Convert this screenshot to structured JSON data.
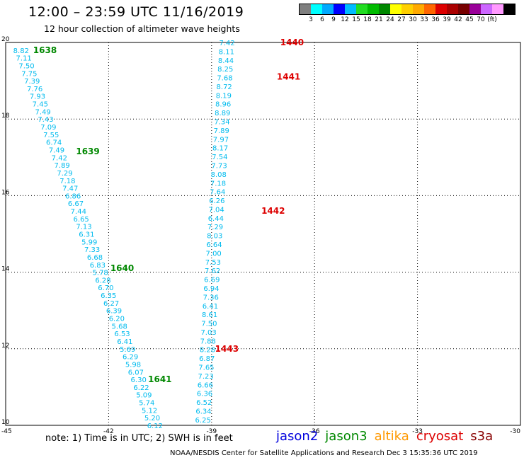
{
  "header": {
    "title": "12:00 – 23:59 UTC 11/16/2019",
    "subtitle": "12 hour collection of altimeter wave heights"
  },
  "legend": {
    "colors": [
      "#7f7f7f",
      "#00ffff",
      "#00aaff",
      "#0000ff",
      "#00bbff",
      "#22dd22",
      "#00bb00",
      "#008800",
      "#ffff00",
      "#ffd000",
      "#ffaa00",
      "#ff6600",
      "#dd0000",
      "#aa0000",
      "#770000",
      "#990099",
      "#cc66ff",
      "#ff99ff",
      "#000000"
    ],
    "labels": [
      "3",
      "6",
      "9",
      "12",
      "15",
      "18",
      "21",
      "24",
      "27",
      "30",
      "33",
      "36",
      "39",
      "42",
      "45",
      "70",
      "(ft)"
    ]
  },
  "map": {
    "lon_min": -45,
    "lon_max": -30,
    "lat_min": 10,
    "lat_max": 20,
    "x_ticks": [
      "-45",
      "-42",
      "-39",
      "-36",
      "-33",
      "-30"
    ],
    "y_ticks": [
      "20",
      "18",
      "16",
      "14",
      "12",
      "10"
    ],
    "x_tick_values": [
      -45,
      -42,
      -39,
      -36,
      -33,
      -30
    ],
    "y_tick_values": [
      20,
      18,
      16,
      14,
      12,
      10
    ],
    "colors": {
      "swh": "#00bbee",
      "jason3": "#008800",
      "cryosat": "#dd0000",
      "grid": "#000000"
    },
    "tracks": [
      {
        "start": {
          "lon": -44.55,
          "lat": 19.8
        },
        "end": {
          "lon": -40.65,
          "lat": 10.0
        },
        "values": [
          "8.82",
          "7.11",
          "7.50",
          "7.75",
          "7.39",
          "7.76",
          "7.93",
          "7.45",
          "7.49",
          "7.43",
          "7.09",
          "7.55",
          "6.74",
          "7.49",
          "7.42",
          "7.89",
          "7.29",
          "7.18",
          "7.47",
          "6.86",
          "6.67",
          "7.44",
          "6.65",
          "7.13",
          "6.31",
          "5.99",
          "7.33",
          "6.68",
          "6.83",
          "5.78",
          "6.28",
          "6.70",
          "6.35",
          "6.27",
          "6.39",
          "6.20",
          "5.68",
          "6.53",
          "6.41",
          "5.69",
          "6.29",
          "5.98",
          "6.07",
          "6.30",
          "6.22",
          "5.09",
          "5.74",
          "5.12",
          "5.20",
          "6.12"
        ]
      },
      {
        "start": {
          "lon": -38.55,
          "lat": 20.0
        },
        "end": {
          "lon": -39.25,
          "lat": 10.15
        },
        "values": [
          "7.42",
          "8.11",
          "8.44",
          "8.25",
          "7.68",
          "8.72",
          "8.19",
          "8.96",
          "8.89",
          "7.34",
          "7.89",
          "7.97",
          "8.17",
          "7.54",
          "7.73",
          "8.08",
          "7.18",
          "7.64",
          "6.26",
          "7.04",
          "6.44",
          "7.29",
          "8.03",
          "6.64",
          "7.00",
          "7.53",
          "7.62",
          "6.69",
          "6.94",
          "7.36",
          "6.41",
          "8.61",
          "7.50",
          "7.03",
          "7.88",
          "8.28",
          "6.87",
          "7.65",
          "7.23",
          "6.66",
          "6.36",
          "6.52",
          "6.34",
          "6.25"
        ]
      }
    ],
    "time_labels": [
      {
        "text": "1638",
        "lon": -44.2,
        "lat": 19.8,
        "sat": "jason3"
      },
      {
        "text": "1639",
        "lon": -42.95,
        "lat": 17.15,
        "sat": "jason3"
      },
      {
        "text": "1640",
        "lon": -41.95,
        "lat": 14.1,
        "sat": "jason3"
      },
      {
        "text": "1641",
        "lon": -40.85,
        "lat": 11.2,
        "sat": "jason3"
      },
      {
        "text": "1440",
        "lon": -37.0,
        "lat": 20.0,
        "sat": "cryosat"
      },
      {
        "text": "1441",
        "lon": -37.1,
        "lat": 19.1,
        "sat": "cryosat"
      },
      {
        "text": "1442",
        "lon": -37.55,
        "lat": 15.6,
        "sat": "cryosat"
      },
      {
        "text": "1443",
        "lon": -38.9,
        "lat": 12.0,
        "sat": "cryosat"
      }
    ]
  },
  "footer": {
    "note": "note:  1) Time is in UTC;  2) SWH is in feet",
    "satellites": [
      {
        "name": "jason2",
        "color": "#0000dd"
      },
      {
        "name": "jason3",
        "color": "#008800"
      },
      {
        "name": "altika",
        "color": "#ff9900"
      },
      {
        "name": "cryosat",
        "color": "#dd0000"
      },
      {
        "name": "s3a",
        "color": "#880000"
      }
    ],
    "credit": "NOAA/NESDIS Center for Satellite Applications and Research     Dec  3 15:35:36 UTC 2019"
  }
}
